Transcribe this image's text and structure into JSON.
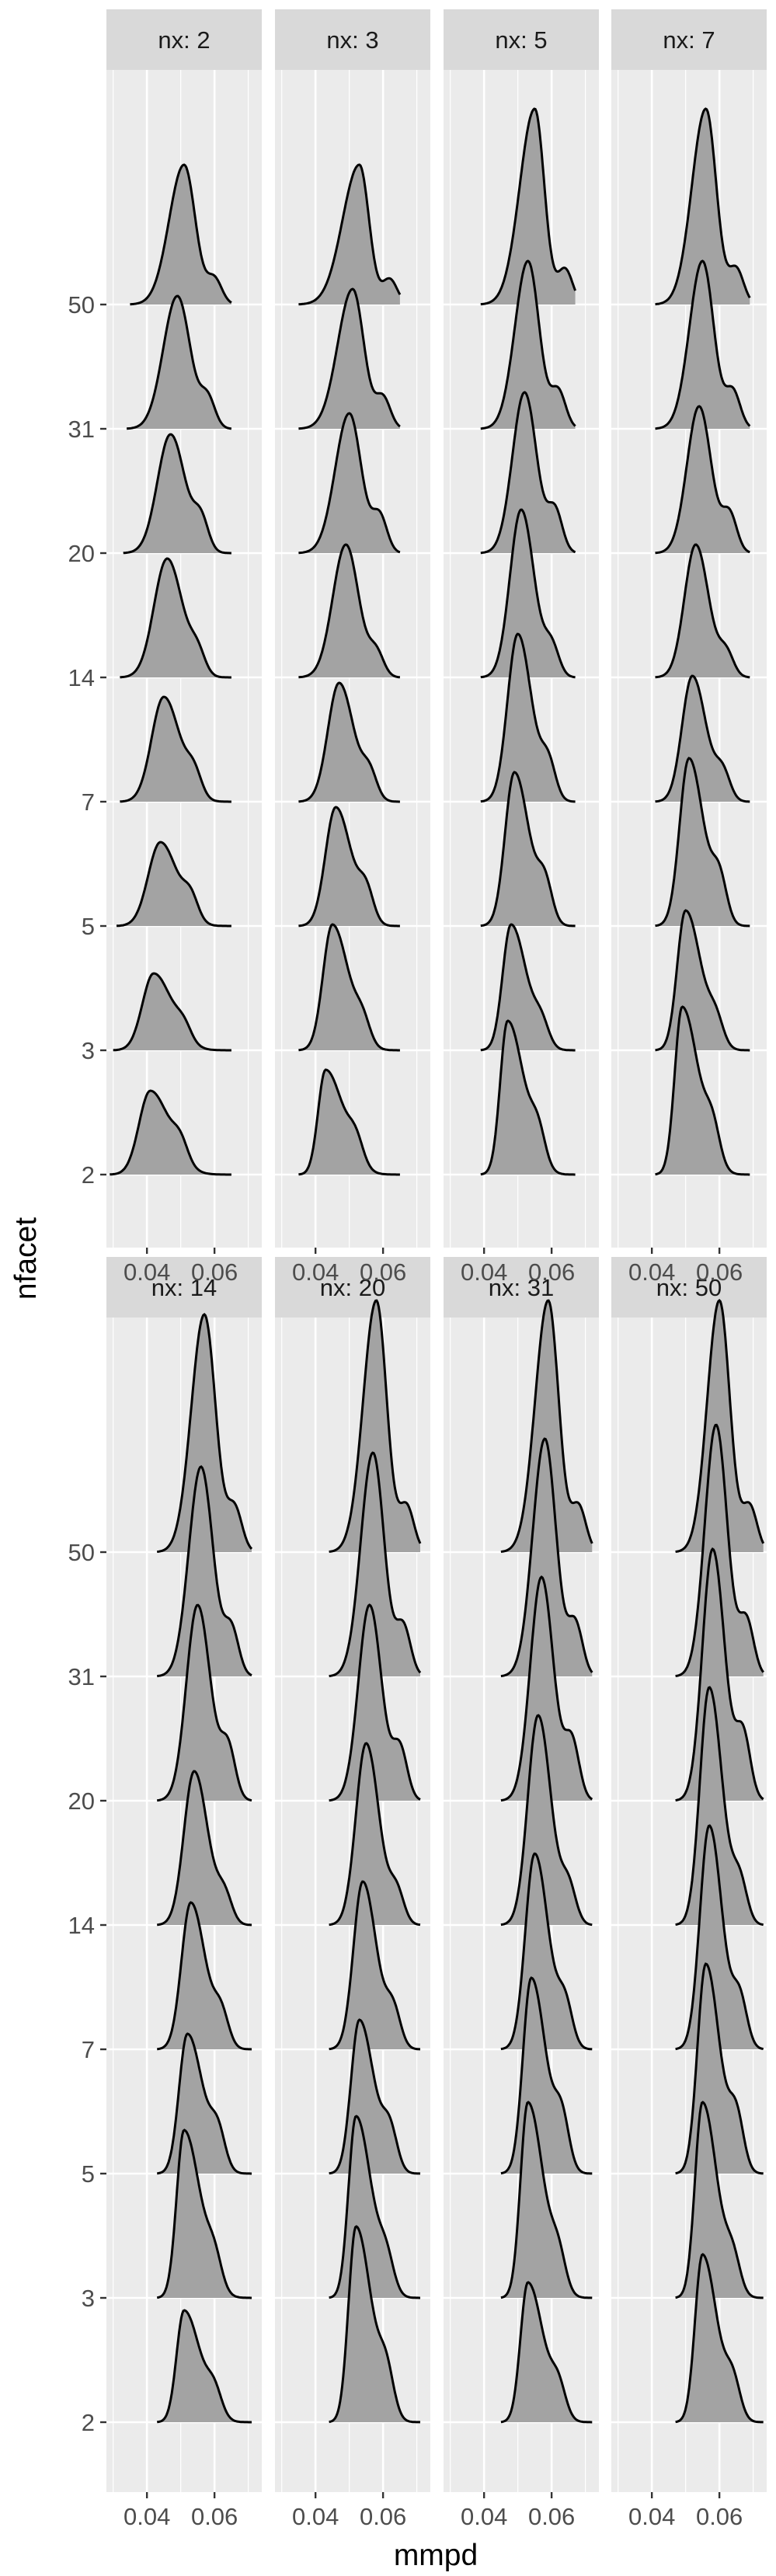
{
  "chart_data": {
    "type": "ridgeline",
    "xlabel": "mmpd",
    "ylabel": "nfacet",
    "xlim": [
      0.028,
      0.074
    ],
    "x_ticks": [
      0.04,
      0.06
    ],
    "x_tick_labels": [
      "0.04",
      "0.06"
    ],
    "y_categories": [
      "2",
      "3",
      "5",
      "7",
      "14",
      "20",
      "31",
      "50"
    ],
    "facet_prefix": "nx: ",
    "facets": [
      {
        "label": "nx: 2",
        "ridges": [
          {
            "nfacet": "2",
            "mode": 0.041,
            "min": 0.029,
            "max": 0.065,
            "height": 0.6
          },
          {
            "nfacet": "3",
            "mode": 0.042,
            "min": 0.03,
            "max": 0.065,
            "height": 0.55
          },
          {
            "nfacet": "5",
            "mode": 0.044,
            "min": 0.031,
            "max": 0.065,
            "height": 0.6
          },
          {
            "nfacet": "7",
            "mode": 0.045,
            "min": 0.032,
            "max": 0.065,
            "height": 0.75
          },
          {
            "nfacet": "14",
            "mode": 0.046,
            "min": 0.032,
            "max": 0.065,
            "height": 0.85
          },
          {
            "nfacet": "20",
            "mode": 0.047,
            "min": 0.033,
            "max": 0.065,
            "height": 0.85
          },
          {
            "nfacet": "31",
            "mode": 0.049,
            "min": 0.034,
            "max": 0.065,
            "height": 0.95
          },
          {
            "nfacet": "50",
            "mode": 0.051,
            "min": 0.035,
            "max": 0.065,
            "height": 1.0
          }
        ]
      },
      {
        "label": "nx: 3",
        "ridges": [
          {
            "nfacet": "2",
            "mode": 0.043,
            "min": 0.035,
            "max": 0.065,
            "height": 0.75
          },
          {
            "nfacet": "3",
            "mode": 0.045,
            "min": 0.035,
            "max": 0.065,
            "height": 0.9
          },
          {
            "nfacet": "5",
            "mode": 0.046,
            "min": 0.035,
            "max": 0.065,
            "height": 0.85
          },
          {
            "nfacet": "7",
            "mode": 0.047,
            "min": 0.035,
            "max": 0.065,
            "height": 0.85
          },
          {
            "nfacet": "14",
            "mode": 0.049,
            "min": 0.035,
            "max": 0.065,
            "height": 0.95
          },
          {
            "nfacet": "20",
            "mode": 0.05,
            "min": 0.035,
            "max": 0.065,
            "height": 1.0
          },
          {
            "nfacet": "31",
            "mode": 0.051,
            "min": 0.035,
            "max": 0.065,
            "height": 1.0
          },
          {
            "nfacet": "50",
            "mode": 0.053,
            "min": 0.035,
            "max": 0.065,
            "height": 1.0
          }
        ]
      },
      {
        "label": "nx: 5",
        "ridges": [
          {
            "nfacet": "2",
            "mode": 0.047,
            "min": 0.039,
            "max": 0.067,
            "height": 1.1
          },
          {
            "nfacet": "3",
            "mode": 0.048,
            "min": 0.039,
            "max": 0.067,
            "height": 0.9
          },
          {
            "nfacet": "5",
            "mode": 0.049,
            "min": 0.039,
            "max": 0.067,
            "height": 1.1
          },
          {
            "nfacet": "7",
            "mode": 0.05,
            "min": 0.039,
            "max": 0.067,
            "height": 1.2
          },
          {
            "nfacet": "14",
            "mode": 0.051,
            "min": 0.039,
            "max": 0.067,
            "height": 1.2
          },
          {
            "nfacet": "20",
            "mode": 0.052,
            "min": 0.039,
            "max": 0.067,
            "height": 1.15
          },
          {
            "nfacet": "31",
            "mode": 0.053,
            "min": 0.039,
            "max": 0.067,
            "height": 1.2
          },
          {
            "nfacet": "50",
            "mode": 0.055,
            "min": 0.039,
            "max": 0.067,
            "height": 1.4
          }
        ]
      },
      {
        "label": "nx: 7",
        "ridges": [
          {
            "nfacet": "2",
            "mode": 0.049,
            "min": 0.041,
            "max": 0.069,
            "height": 1.2
          },
          {
            "nfacet": "3",
            "mode": 0.05,
            "min": 0.041,
            "max": 0.069,
            "height": 1.0
          },
          {
            "nfacet": "5",
            "mode": 0.051,
            "min": 0.041,
            "max": 0.069,
            "height": 1.2
          },
          {
            "nfacet": "7",
            "mode": 0.052,
            "min": 0.041,
            "max": 0.069,
            "height": 0.9
          },
          {
            "nfacet": "14",
            "mode": 0.053,
            "min": 0.041,
            "max": 0.069,
            "height": 0.95
          },
          {
            "nfacet": "20",
            "mode": 0.054,
            "min": 0.041,
            "max": 0.069,
            "height": 1.05
          },
          {
            "nfacet": "31",
            "mode": 0.055,
            "min": 0.041,
            "max": 0.069,
            "height": 1.2
          },
          {
            "nfacet": "50",
            "mode": 0.056,
            "min": 0.041,
            "max": 0.069,
            "height": 1.4
          }
        ]
      },
      {
        "label": "nx: 14",
        "ridges": [
          {
            "nfacet": "2",
            "mode": 0.051,
            "min": 0.043,
            "max": 0.071,
            "height": 0.8
          },
          {
            "nfacet": "3",
            "mode": 0.051,
            "min": 0.043,
            "max": 0.071,
            "height": 1.2
          },
          {
            "nfacet": "5",
            "mode": 0.052,
            "min": 0.043,
            "max": 0.071,
            "height": 1.0
          },
          {
            "nfacet": "7",
            "mode": 0.053,
            "min": 0.043,
            "max": 0.071,
            "height": 1.05
          },
          {
            "nfacet": "14",
            "mode": 0.054,
            "min": 0.043,
            "max": 0.071,
            "height": 1.1
          },
          {
            "nfacet": "20",
            "mode": 0.055,
            "min": 0.043,
            "max": 0.071,
            "height": 1.4
          },
          {
            "nfacet": "31",
            "mode": 0.056,
            "min": 0.043,
            "max": 0.071,
            "height": 1.5
          },
          {
            "nfacet": "50",
            "mode": 0.057,
            "min": 0.043,
            "max": 0.071,
            "height": 1.7
          }
        ]
      },
      {
        "label": "nx: 20",
        "ridges": [
          {
            "nfacet": "2",
            "mode": 0.052,
            "min": 0.044,
            "max": 0.071,
            "height": 1.4
          },
          {
            "nfacet": "3",
            "mode": 0.052,
            "min": 0.044,
            "max": 0.071,
            "height": 1.3
          },
          {
            "nfacet": "5",
            "mode": 0.053,
            "min": 0.044,
            "max": 0.071,
            "height": 1.1
          },
          {
            "nfacet": "7",
            "mode": 0.054,
            "min": 0.044,
            "max": 0.071,
            "height": 1.2
          },
          {
            "nfacet": "14",
            "mode": 0.055,
            "min": 0.044,
            "max": 0.071,
            "height": 1.3
          },
          {
            "nfacet": "20",
            "mode": 0.056,
            "min": 0.044,
            "max": 0.071,
            "height": 1.4
          },
          {
            "nfacet": "31",
            "mode": 0.057,
            "min": 0.044,
            "max": 0.071,
            "height": 1.6
          },
          {
            "nfacet": "50",
            "mode": 0.058,
            "min": 0.044,
            "max": 0.071,
            "height": 1.8
          }
        ]
      },
      {
        "label": "nx: 31",
        "ridges": [
          {
            "nfacet": "2",
            "mode": 0.053,
            "min": 0.045,
            "max": 0.072,
            "height": 1.0
          },
          {
            "nfacet": "3",
            "mode": 0.053,
            "min": 0.045,
            "max": 0.072,
            "height": 1.4
          },
          {
            "nfacet": "5",
            "mode": 0.054,
            "min": 0.045,
            "max": 0.072,
            "height": 1.4
          },
          {
            "nfacet": "7",
            "mode": 0.055,
            "min": 0.045,
            "max": 0.072,
            "height": 1.4
          },
          {
            "nfacet": "14",
            "mode": 0.056,
            "min": 0.045,
            "max": 0.072,
            "height": 1.5
          },
          {
            "nfacet": "20",
            "mode": 0.057,
            "min": 0.045,
            "max": 0.072,
            "height": 1.6
          },
          {
            "nfacet": "31",
            "mode": 0.058,
            "min": 0.045,
            "max": 0.072,
            "height": 1.7
          },
          {
            "nfacet": "50",
            "mode": 0.059,
            "min": 0.045,
            "max": 0.072,
            "height": 1.8
          }
        ]
      },
      {
        "label": "nx: 50",
        "ridges": [
          {
            "nfacet": "2",
            "mode": 0.055,
            "min": 0.047,
            "max": 0.073,
            "height": 1.2
          },
          {
            "nfacet": "3",
            "mode": 0.055,
            "min": 0.047,
            "max": 0.073,
            "height": 1.4
          },
          {
            "nfacet": "5",
            "mode": 0.056,
            "min": 0.047,
            "max": 0.073,
            "height": 1.5
          },
          {
            "nfacet": "7",
            "mode": 0.057,
            "min": 0.047,
            "max": 0.073,
            "height": 1.6
          },
          {
            "nfacet": "14",
            "mode": 0.057,
            "min": 0.047,
            "max": 0.073,
            "height": 1.7
          },
          {
            "nfacet": "20",
            "mode": 0.058,
            "min": 0.047,
            "max": 0.073,
            "height": 1.8
          },
          {
            "nfacet": "31",
            "mode": 0.059,
            "min": 0.047,
            "max": 0.073,
            "height": 1.8
          },
          {
            "nfacet": "50",
            "mode": 0.06,
            "min": 0.047,
            "max": 0.073,
            "height": 1.8
          }
        ]
      }
    ],
    "grid": true,
    "colors": {
      "panel_bg": "#ebebeb",
      "strip_bg": "#d9d9d9",
      "grid": "#ffffff",
      "ridge_fill": "#a3a3a3",
      "ridge_line": "#000000"
    }
  }
}
